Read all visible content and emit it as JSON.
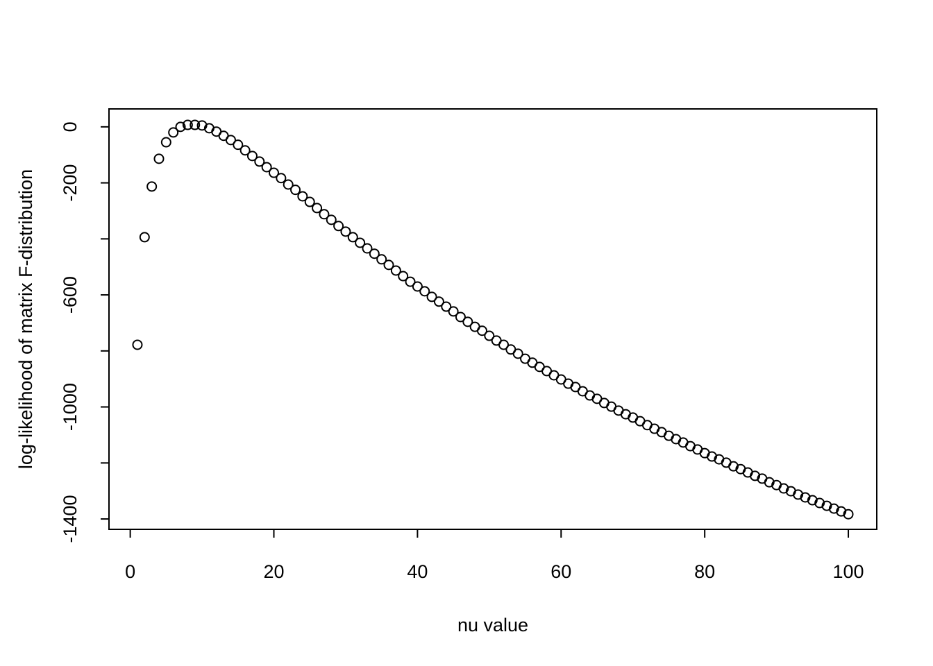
{
  "chart_data": {
    "type": "scatter",
    "x_label": "nu value",
    "y_label": "log-likelihood of matrix F-distribution",
    "x": [
      1,
      2,
      3,
      4,
      5,
      6,
      7,
      8,
      9,
      10,
      11,
      12,
      13,
      14,
      15,
      16,
      17,
      18,
      19,
      20,
      21,
      22,
      23,
      24,
      25,
      26,
      27,
      28,
      29,
      30,
      31,
      32,
      33,
      34,
      35,
      36,
      37,
      38,
      39,
      40,
      41,
      42,
      43,
      44,
      45,
      46,
      47,
      48,
      49,
      50,
      51,
      52,
      53,
      54,
      55,
      56,
      57,
      58,
      59,
      60,
      61,
      62,
      63,
      64,
      65,
      66,
      67,
      68,
      69,
      70,
      71,
      72,
      73,
      74,
      75,
      76,
      77,
      78,
      79,
      80,
      81,
      82,
      83,
      84,
      85,
      86,
      87,
      88,
      89,
      90,
      91,
      92,
      93,
      94,
      95,
      96,
      97,
      98,
      99,
      100
    ],
    "values": [
      -778,
      -394,
      -213,
      -114,
      -55,
      -20,
      0,
      7,
      7,
      5,
      -5,
      -17,
      -32,
      -47,
      -64,
      -84,
      -104,
      -124,
      -144,
      -164,
      -183,
      -206,
      -225,
      -248,
      -268,
      -290,
      -312,
      -332,
      -354,
      -374,
      -394,
      -414,
      -434,
      -453,
      -473,
      -493,
      -513,
      -533,
      -553,
      -570,
      -587,
      -607,
      -624,
      -642,
      -659,
      -679,
      -696,
      -714,
      -728,
      -746,
      -763,
      -778,
      -795,
      -810,
      -828,
      -842,
      -857,
      -872,
      -887,
      -902,
      -917,
      -929,
      -944,
      -959,
      -971,
      -986,
      -999,
      -1013,
      -1026,
      -1038,
      -1051,
      -1065,
      -1078,
      -1090,
      -1103,
      -1115,
      -1127,
      -1140,
      -1152,
      -1165,
      -1177,
      -1187,
      -1199,
      -1212,
      -1222,
      -1234,
      -1246,
      -1256,
      -1269,
      -1279,
      -1291,
      -1301,
      -1313,
      -1323,
      -1333,
      -1343,
      -1353,
      -1363,
      -1373,
      -1383
    ],
    "color": "#000000",
    "xlim": [
      -2.96,
      103.96
    ],
    "ylim": [
      -1437,
      64
    ],
    "xticks": [
      0,
      20,
      40,
      60,
      80,
      100
    ],
    "yticks": [
      0,
      -200,
      {
        "value": -400,
        "label": null
      },
      -600,
      {
        "value": -800,
        "label": null
      },
      -1000,
      {
        "value": -1200,
        "label": null
      },
      -1400
    ],
    "grid": false
  }
}
